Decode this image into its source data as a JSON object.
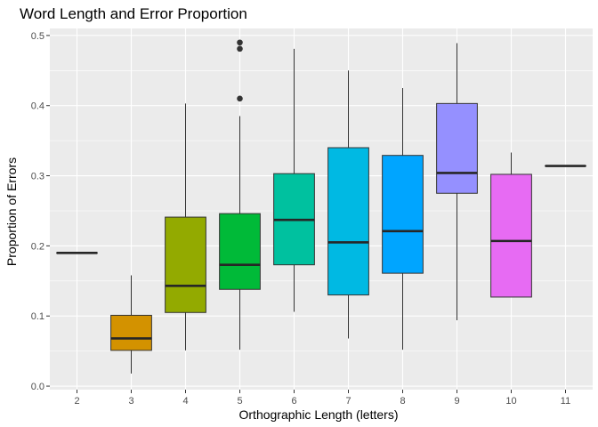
{
  "chart_data": {
    "type": "boxplot",
    "title": "Word Length and Error Proportion",
    "xlabel": "Orthographic Length (letters)",
    "ylabel": "Proportion of Errors",
    "ylim": [
      -0.005,
      0.51
    ],
    "yticks": [
      0.0,
      0.1,
      0.2,
      0.3,
      0.4,
      0.5
    ],
    "ytick_labels": [
      "0.0",
      "0.1",
      "0.2",
      "0.3",
      "0.4",
      "0.5"
    ],
    "grid": true,
    "legend": "none",
    "categories": [
      "2",
      "3",
      "4",
      "5",
      "6",
      "7",
      "8",
      "9",
      "10",
      "11"
    ],
    "boxes": [
      {
        "category": "2",
        "color": "#F8766D",
        "min": 0.19,
        "q1": 0.19,
        "median": 0.19,
        "q3": 0.19,
        "max": 0.19,
        "outliers": []
      },
      {
        "category": "3",
        "color": "#D39200",
        "min": 0.018,
        "q1": 0.051,
        "median": 0.068,
        "q3": 0.101,
        "max": 0.158,
        "outliers": []
      },
      {
        "category": "4",
        "color": "#93AA00",
        "min": 0.051,
        "q1": 0.105,
        "median": 0.143,
        "q3": 0.241,
        "max": 0.403,
        "outliers": []
      },
      {
        "category": "5",
        "color": "#00BA38",
        "min": 0.052,
        "q1": 0.138,
        "median": 0.173,
        "q3": 0.246,
        "max": 0.385,
        "outliers": [
          0.41,
          0.481,
          0.49
        ]
      },
      {
        "category": "6",
        "color": "#00C19F",
        "min": 0.106,
        "q1": 0.173,
        "median": 0.237,
        "q3": 0.303,
        "max": 0.481,
        "outliers": []
      },
      {
        "category": "7",
        "color": "#00B9E3",
        "min": 0.068,
        "q1": 0.13,
        "median": 0.205,
        "q3": 0.34,
        "max": 0.45,
        "outliers": []
      },
      {
        "category": "8",
        "color": "#00A5FF",
        "min": 0.052,
        "q1": 0.161,
        "median": 0.221,
        "q3": 0.329,
        "max": 0.425,
        "outliers": []
      },
      {
        "category": "9",
        "color": "#9590FF",
        "min": 0.094,
        "q1": 0.275,
        "median": 0.304,
        "q3": 0.403,
        "max": 0.489,
        "outliers": []
      },
      {
        "category": "10",
        "color": "#E76BF3",
        "min": 0.127,
        "q1": 0.127,
        "median": 0.207,
        "q3": 0.302,
        "max": 0.333,
        "outliers": []
      },
      {
        "category": "11",
        "color": "#FF62BC",
        "min": 0.314,
        "q1": 0.314,
        "median": 0.314,
        "q3": 0.314,
        "max": 0.314,
        "outliers": []
      }
    ],
    "colors": {
      "panel_background": "#EBEBEB",
      "grid_major": "#FFFFFF",
      "line": "#333333",
      "median": "#262626",
      "outlier": "#333333"
    }
  }
}
